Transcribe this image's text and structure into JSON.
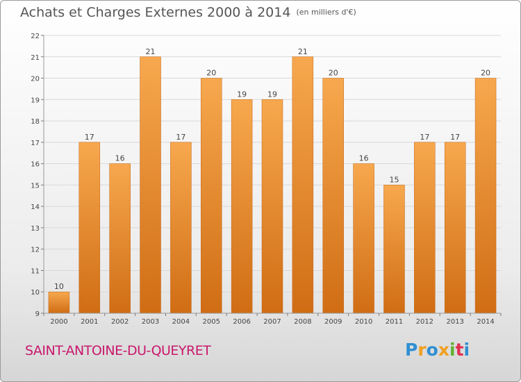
{
  "title": "Achats et Charges Externes 2000 à 2014",
  "unit": "(en milliers d'€)",
  "commune": "SAINT-ANTOINE-DU-QUEYRET",
  "logo": {
    "letters": [
      "P",
      "r",
      "o",
      "x",
      "i",
      "t",
      "i"
    ],
    "colors": [
      "#2f8fd3",
      "#f0a020",
      "#2f8fd3",
      "#f0a020",
      "#60b030",
      "#e03050",
      "#2f8fd3"
    ]
  },
  "colors": {
    "bar_top": "#f7a84e",
    "bar_bottom": "#d06d14",
    "grid": "#d8d8d8"
  },
  "chart_data": {
    "type": "bar",
    "categories": [
      "2000",
      "2001",
      "2002",
      "2003",
      "2004",
      "2005",
      "2006",
      "2007",
      "2008",
      "2009",
      "2010",
      "2011",
      "2012",
      "2013",
      "2014"
    ],
    "values": [
      10,
      17,
      16,
      21,
      17,
      20,
      19,
      19,
      21,
      20,
      16,
      15,
      17,
      17,
      20
    ],
    "title": "Achats et Charges Externes 2000 à 2014",
    "xlabel": "",
    "ylabel": "",
    "ylim": [
      9,
      22
    ],
    "yticks": [
      9,
      10,
      11,
      12,
      13,
      14,
      15,
      16,
      17,
      18,
      19,
      20,
      21,
      22
    ],
    "grid": true
  }
}
